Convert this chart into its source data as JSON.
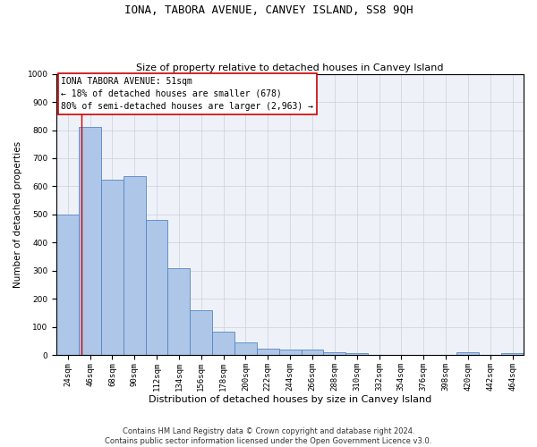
{
  "title": "IONA, TABORA AVENUE, CANVEY ISLAND, SS8 9QH",
  "subtitle": "Size of property relative to detached houses in Canvey Island",
  "xlabel": "Distribution of detached houses by size in Canvey Island",
  "ylabel": "Number of detached properties",
  "categories": [
    "24sqm",
    "46sqm",
    "68sqm",
    "90sqm",
    "112sqm",
    "134sqm",
    "156sqm",
    "178sqm",
    "200sqm",
    "222sqm",
    "244sqm",
    "266sqm",
    "288sqm",
    "310sqm",
    "332sqm",
    "354sqm",
    "376sqm",
    "398sqm",
    "420sqm",
    "442sqm",
    "464sqm"
  ],
  "values": [
    500,
    810,
    625,
    635,
    480,
    310,
    160,
    82,
    46,
    24,
    20,
    20,
    10,
    5,
    0,
    0,
    0,
    0,
    10,
    0,
    5
  ],
  "bar_color": "#aec6e8",
  "bar_edge_color": "#5585c5",
  "vline_color": "#cc0000",
  "vline_x_index": 1,
  "annotation_box_text": "IONA TABORA AVENUE: 51sqm\n← 18% of detached houses are smaller (678)\n80% of semi-detached houses are larger (2,963) →",
  "box_edge_color": "#cc0000",
  "ylim": [
    0,
    1000
  ],
  "yticks": [
    0,
    100,
    200,
    300,
    400,
    500,
    600,
    700,
    800,
    900,
    1000
  ],
  "grid_color": "#c8d0dc",
  "background_color": "#eef2f8",
  "footer1": "Contains HM Land Registry data © Crown copyright and database right 2024.",
  "footer2": "Contains public sector information licensed under the Open Government Licence v3.0.",
  "title_fontsize": 9,
  "subtitle_fontsize": 8,
  "xlabel_fontsize": 8,
  "ylabel_fontsize": 7.5,
  "tick_fontsize": 6.5,
  "annot_fontsize": 7,
  "footer_fontsize": 6
}
